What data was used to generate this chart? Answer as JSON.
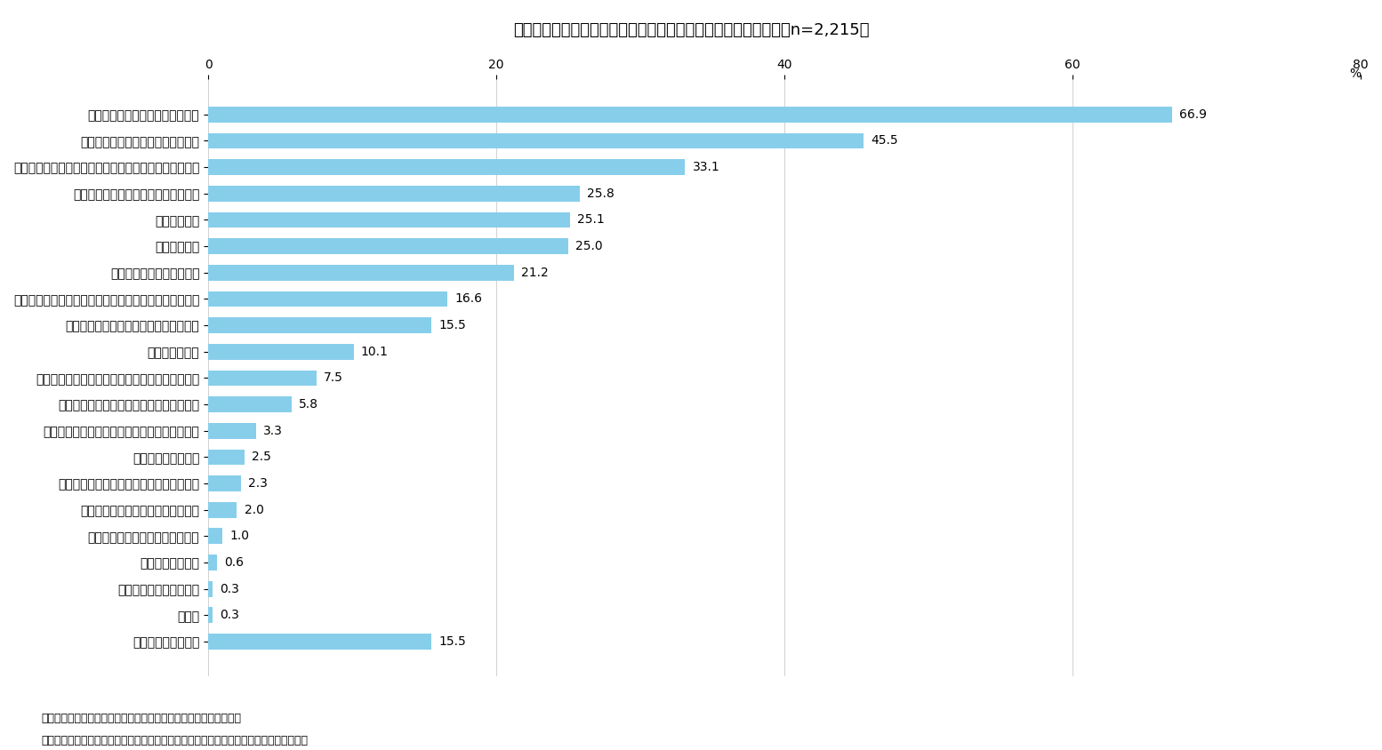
{
  "title": "図表７　日本国内の物価上昇を実感して取った行動（複数選択、n=2,215）",
  "categories": [
    "できるだけ不要なものは買わない",
    "ポイントやクーポンなどを活用する",
    "食料品などの生活必需品は価格の安い製品へ乗り換える",
    "セールやアウトレットなどを利用する",
    "家計の見直し",
    "外食を減らす",
    "洋服や装飾品を買い控える",
    "修理などして、できるだけ長く使えるものは使い続ける",
    "旅行やレジャーなどの娯楽費用を減らす",
    "貯蓄を切り崩す",
    "新品と比べて割安で購入できる中古品を購入する",
    "仕事を増やすなど収入を得る手段を増やす",
    "サブスクリプションサービスを休止・解約する",
    "習い事費用を減らす",
    "自家用車など維持費のかかるものを手放す",
    "シェアリング・サービスを利用する",
    "有価証券や保険を売却・解約する",
    "不動産を売却する",
    "子どもの教育費を減らす",
    "その他",
    "特に何もしていない"
  ],
  "values": [
    66.9,
    45.5,
    33.1,
    25.8,
    25.1,
    25.0,
    21.2,
    16.6,
    15.5,
    10.1,
    7.5,
    5.8,
    3.3,
    2.5,
    2.3,
    2.0,
    1.0,
    0.6,
    0.3,
    0.3,
    15.5
  ],
  "bar_color": "#87CEEB",
  "bar_color_last": "#87CEEB",
  "xlim": [
    0,
    80
  ],
  "xticks": [
    0,
    20,
    40,
    60,
    80
  ],
  "xlabel_unit": "%",
  "note1": "（注）「特に何もしていない」を除き、上から選択割合の高い順。",
  "note2": "（資料）ニッセイ基礎研究所「第１０回　新型コロナによる暮らしの変化に関する調査」",
  "background_color": "#ffffff",
  "bar_height": 0.6,
  "title_fontsize": 13,
  "label_fontsize": 10,
  "value_fontsize": 10,
  "tick_fontsize": 10
}
